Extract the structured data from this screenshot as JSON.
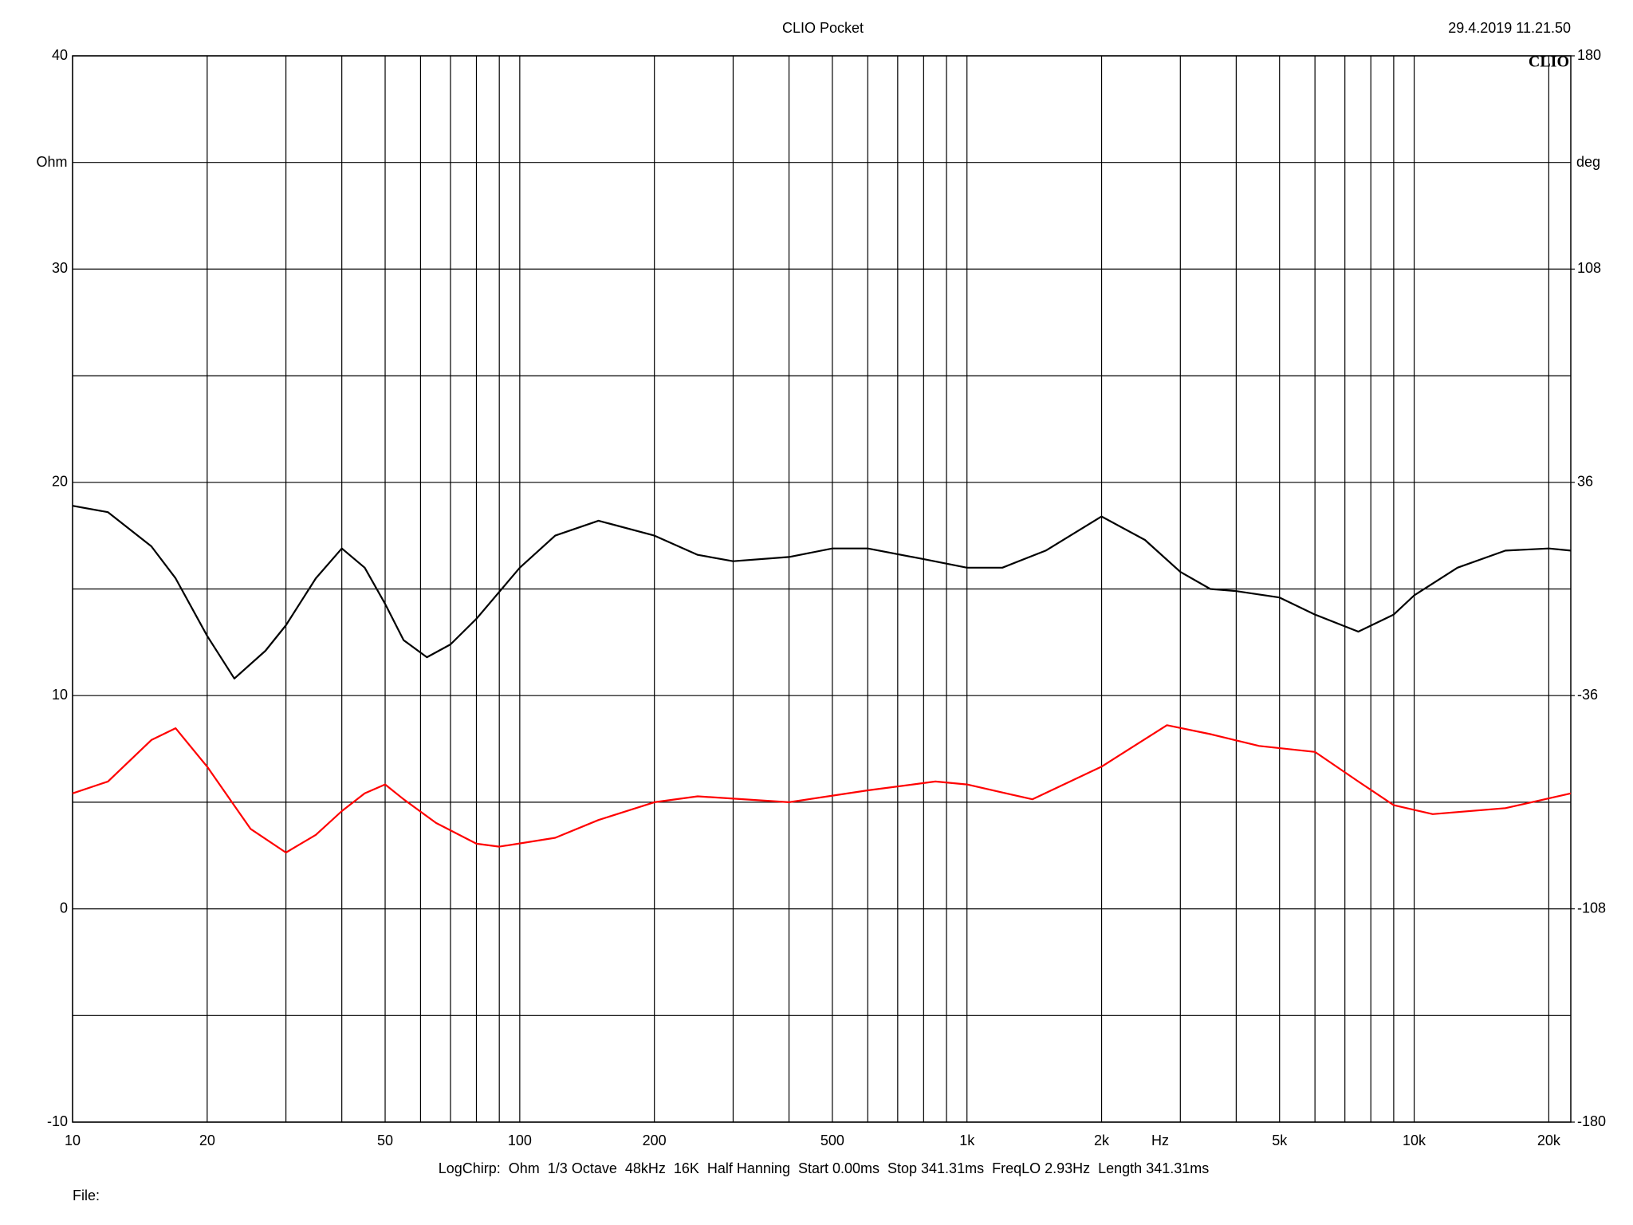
{
  "chart_data": {
    "type": "line",
    "title": "CLIO Pocket",
    "timestamp": "29.4.2019 11.21.50",
    "logo": "CLIO",
    "ylabel": "Ohm",
    "y2label": "deg",
    "xlabel": "Hz",
    "footer": "LogChirp:  Ohm  1/3 Octave  48kHz  16K  Half Hanning  Start 0.00ms  Stop 341.31ms  FreqLO 2.93Hz  Length 341.31ms",
    "file_label": "File:",
    "xscale": "log",
    "grid": true,
    "xlim": [
      10,
      22400
    ],
    "xticks": [
      10,
      20,
      50,
      100,
      200,
      500,
      {
        "value": 1000,
        "label": "1k"
      },
      {
        "value": 2000,
        "label": "2k"
      },
      {
        "value": 5000,
        "label": "5k"
      },
      {
        "value": 10000,
        "label": "10k"
      },
      {
        "value": 20000,
        "label": "20k"
      }
    ],
    "x_minor_grid": [
      30,
      40,
      60,
      70,
      80,
      90,
      300,
      400,
      600,
      700,
      800,
      900,
      3000,
      4000,
      6000,
      7000,
      8000,
      9000
    ],
    "ylim": [
      -10,
      40
    ],
    "yticks": [
      -10,
      0,
      10,
      20,
      30,
      40
    ],
    "y_minor_grid": [
      -5,
      5,
      15,
      25,
      35
    ],
    "y2lim": [
      -180,
      180
    ],
    "y2ticks": [
      -180,
      -108,
      -36,
      36,
      108,
      180
    ],
    "x": [
      10,
      12,
      15,
      17,
      20,
      23,
      27,
      30,
      35,
      40,
      45,
      50,
      55,
      62,
      70,
      80,
      100,
      120,
      150,
      200,
      250,
      300,
      400,
      500,
      600,
      800,
      1000,
      1200,
      1500,
      2000,
      2500,
      3000,
      3500,
      4000,
      5000,
      6000,
      7500,
      9000,
      10000,
      12500,
      16000,
      20000,
      22400
    ],
    "series": [
      {
        "color": "#000000",
        "values": [
          18.9,
          18.6,
          17.0,
          15.5,
          12.8,
          10.8,
          12.1,
          13.3,
          15.5,
          16.9,
          16.0,
          14.3,
          12.6,
          11.8,
          12.4,
          13.6,
          16.0,
          17.5,
          18.2,
          17.5,
          16.6,
          16.3,
          16.5,
          16.9,
          16.9,
          16.4,
          16.0,
          16.0,
          16.8,
          18.4,
          17.3,
          15.8,
          15.0,
          14.9,
          14.6,
          13.8,
          13.0,
          13.8,
          14.7,
          16.0,
          16.8,
          16.9,
          16.8
        ]
      },
      {
        "color": "#ff0000",
        "axis": "y2",
        "x": [
          10,
          12,
          15,
          17,
          20,
          25,
          30,
          35,
          40,
          45,
          50,
          55,
          65,
          80,
          90,
          120,
          150,
          200,
          250,
          400,
          600,
          850,
          1000,
          1400,
          2000,
          2800,
          3500,
          4500,
          6000,
          7500,
          9000,
          11000,
          16000,
          22400
        ],
        "values": [
          -69,
          -65,
          -51,
          -47,
          -60,
          -81,
          -89,
          -83,
          -75,
          -69,
          -66,
          -71,
          -79,
          -86,
          -87,
          -84,
          -78,
          -72,
          -70,
          -72,
          -68,
          -65,
          -66,
          -71,
          -60,
          -46,
          -49,
          -53,
          -55,
          -65,
          -73,
          -76,
          -74,
          -69
        ]
      }
    ]
  }
}
